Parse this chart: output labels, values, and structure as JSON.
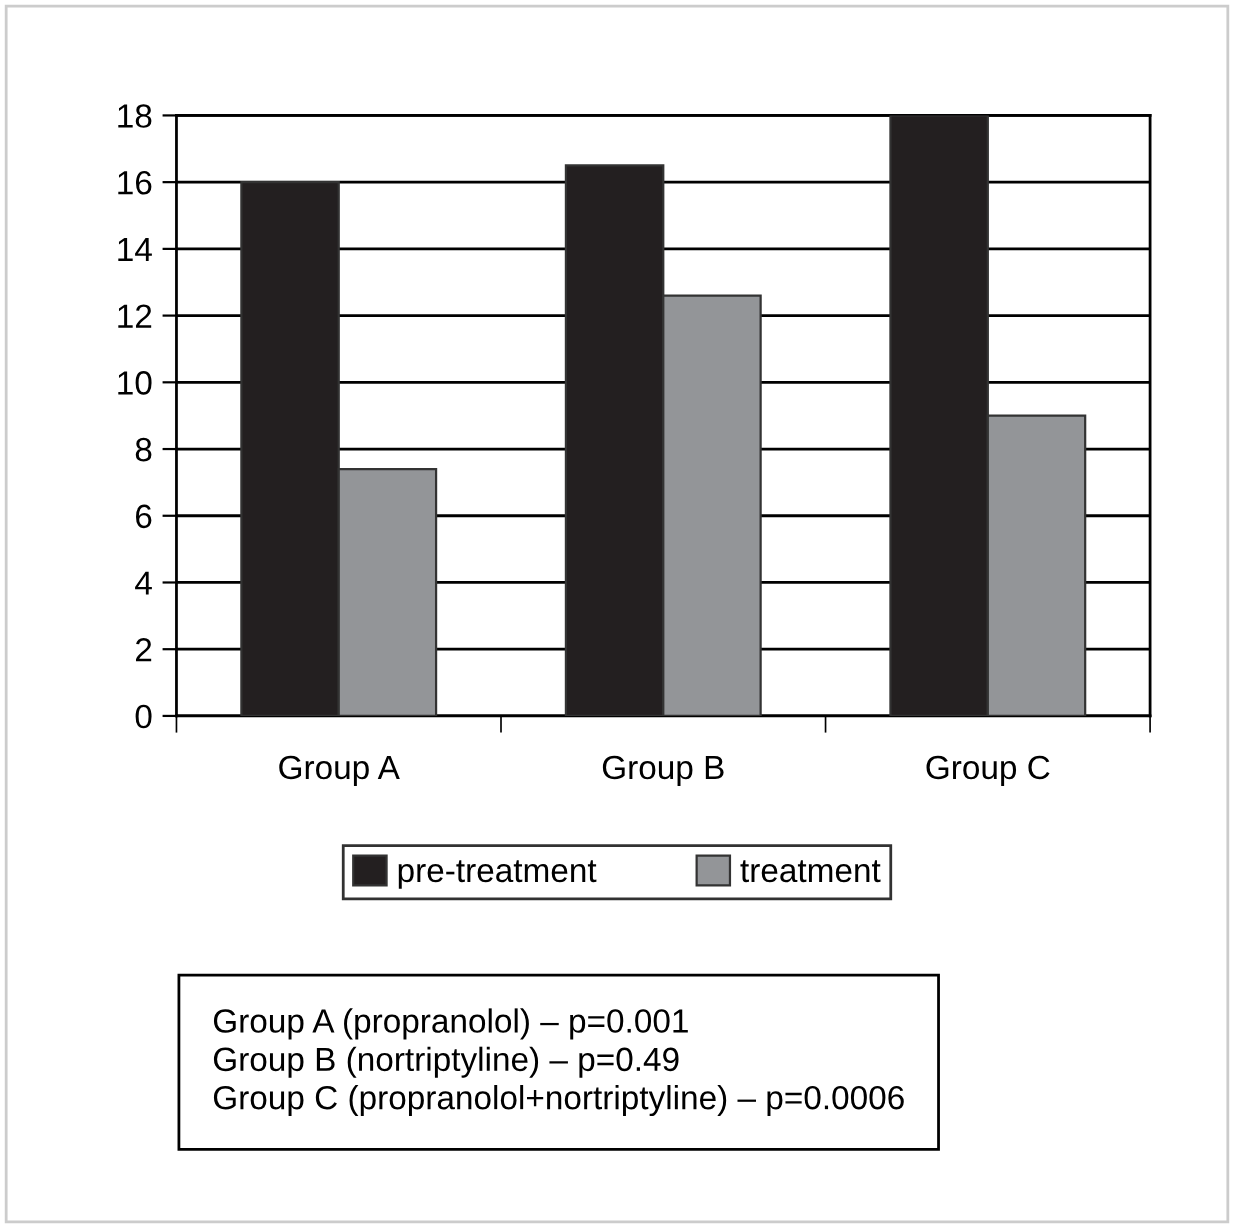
{
  "chart_data": {
    "type": "bar",
    "categories": [
      "Group A",
      "Group B",
      "Group C"
    ],
    "series": [
      {
        "name": "pre-treatment",
        "color": "#231f20",
        "values": [
          16,
          16.5,
          18
        ]
      },
      {
        "name": "treatment",
        "color": "#939598",
        "values": [
          7.4,
          12.6,
          9.0
        ]
      }
    ],
    "ylim": [
      0,
      18
    ],
    "yticks": [
      0,
      2,
      4,
      6,
      8,
      10,
      12,
      14,
      16,
      18
    ],
    "grid": "y",
    "legend": "bottom",
    "annotations": [
      "Group A (propranolol) – p=0.001",
      "Group B (nortriptyline) – p=0.49",
      "Group C (propranolol+nortriptyline) – p=0.0006"
    ]
  }
}
